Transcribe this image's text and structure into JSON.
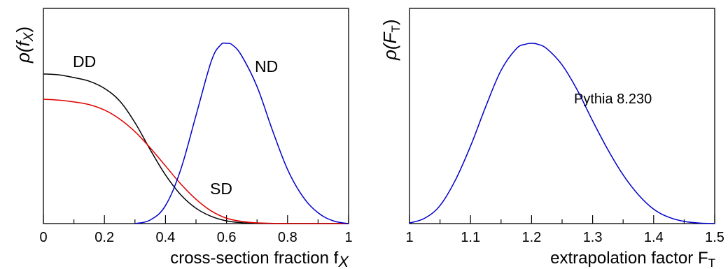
{
  "colors": {
    "black": "#000000",
    "red": "#e00000",
    "blue": "#0000cc"
  },
  "chart_data": [
    {
      "type": "line",
      "xlabel": "cross-section fraction f",
      "xlabel_subscript": "X",
      "ylabel": "ρ(f",
      "ylabel_subscript": "X",
      "ylabel_close": ")",
      "xlim": [
        0,
        1
      ],
      "ylim": [
        0,
        1
      ],
      "y_ticks_shown": false,
      "grid": false,
      "x_ticks": [
        {
          "value": 0,
          "label": "0"
        },
        {
          "value": 0.2,
          "label": "0.2"
        },
        {
          "value": 0.4,
          "label": "0.4"
        },
        {
          "value": 0.6,
          "label": "0.6"
        },
        {
          "value": 0.8,
          "label": "0.8"
        },
        {
          "value": 1,
          "label": "1"
        }
      ],
      "series": [
        {
          "name": "DD",
          "color": "#000000",
          "x": [
            0,
            0.05,
            0.1,
            0.15,
            0.2,
            0.25,
            0.3,
            0.35,
            0.4,
            0.45,
            0.5,
            0.55,
            0.6,
            0.65,
            0.7,
            0.8,
            1.0
          ],
          "y": [
            0.83,
            0.825,
            0.81,
            0.79,
            0.75,
            0.68,
            0.56,
            0.41,
            0.27,
            0.16,
            0.085,
            0.04,
            0.015,
            0.005,
            0.001,
            0,
            0
          ]
        },
        {
          "name": "SD",
          "color": "#e00000",
          "x": [
            0,
            0.05,
            0.1,
            0.15,
            0.2,
            0.25,
            0.3,
            0.35,
            0.4,
            0.45,
            0.5,
            0.55,
            0.6,
            0.65,
            0.7,
            0.8,
            1.0
          ],
          "y": [
            0.69,
            0.685,
            0.675,
            0.66,
            0.63,
            0.58,
            0.51,
            0.42,
            0.32,
            0.22,
            0.135,
            0.07,
            0.03,
            0.012,
            0.004,
            0,
            0
          ]
        },
        {
          "name": "ND",
          "color": "#0000cc",
          "x": [
            0.3,
            0.35,
            0.4,
            0.45,
            0.5,
            0.55,
            0.58,
            0.6,
            0.62,
            0.65,
            0.7,
            0.75,
            0.8,
            0.85,
            0.9,
            0.95,
            1.0
          ],
          "y": [
            0,
            0.02,
            0.1,
            0.3,
            0.6,
            0.9,
            0.99,
            1.0,
            0.99,
            0.93,
            0.76,
            0.52,
            0.3,
            0.15,
            0.06,
            0.015,
            0
          ]
        }
      ]
    },
    {
      "type": "line",
      "xlabel": "extrapolation factor F",
      "xlabel_subscript": "T",
      "ylabel": "ρ(F",
      "ylabel_subscript": "T",
      "ylabel_close": ")",
      "xlim": [
        1,
        1.5
      ],
      "ylim": [
        0,
        1
      ],
      "y_ticks_shown": false,
      "grid": false,
      "annotation": "Pythia 8.230",
      "x_ticks": [
        {
          "value": 1,
          "label": "1"
        },
        {
          "value": 1.1,
          "label": "1.1"
        },
        {
          "value": 1.2,
          "label": "1.2"
        },
        {
          "value": 1.3,
          "label": "1.3"
        },
        {
          "value": 1.4,
          "label": "1.4"
        },
        {
          "value": 1.5,
          "label": "1.5"
        }
      ],
      "series": [
        {
          "color": "#0000cc",
          "x": [
            1.0,
            1.025,
            1.05,
            1.075,
            1.1,
            1.125,
            1.15,
            1.175,
            1.19,
            1.2,
            1.21,
            1.225,
            1.25,
            1.275,
            1.3,
            1.325,
            1.35,
            1.375,
            1.4,
            1.425,
            1.45,
            1.475,
            1.5
          ],
          "y": [
            0.003,
            0.03,
            0.1,
            0.24,
            0.43,
            0.65,
            0.85,
            0.97,
            0.995,
            1.0,
            0.995,
            0.97,
            0.88,
            0.74,
            0.57,
            0.41,
            0.27,
            0.16,
            0.08,
            0.035,
            0.012,
            0.003,
            0
          ]
        }
      ]
    }
  ]
}
